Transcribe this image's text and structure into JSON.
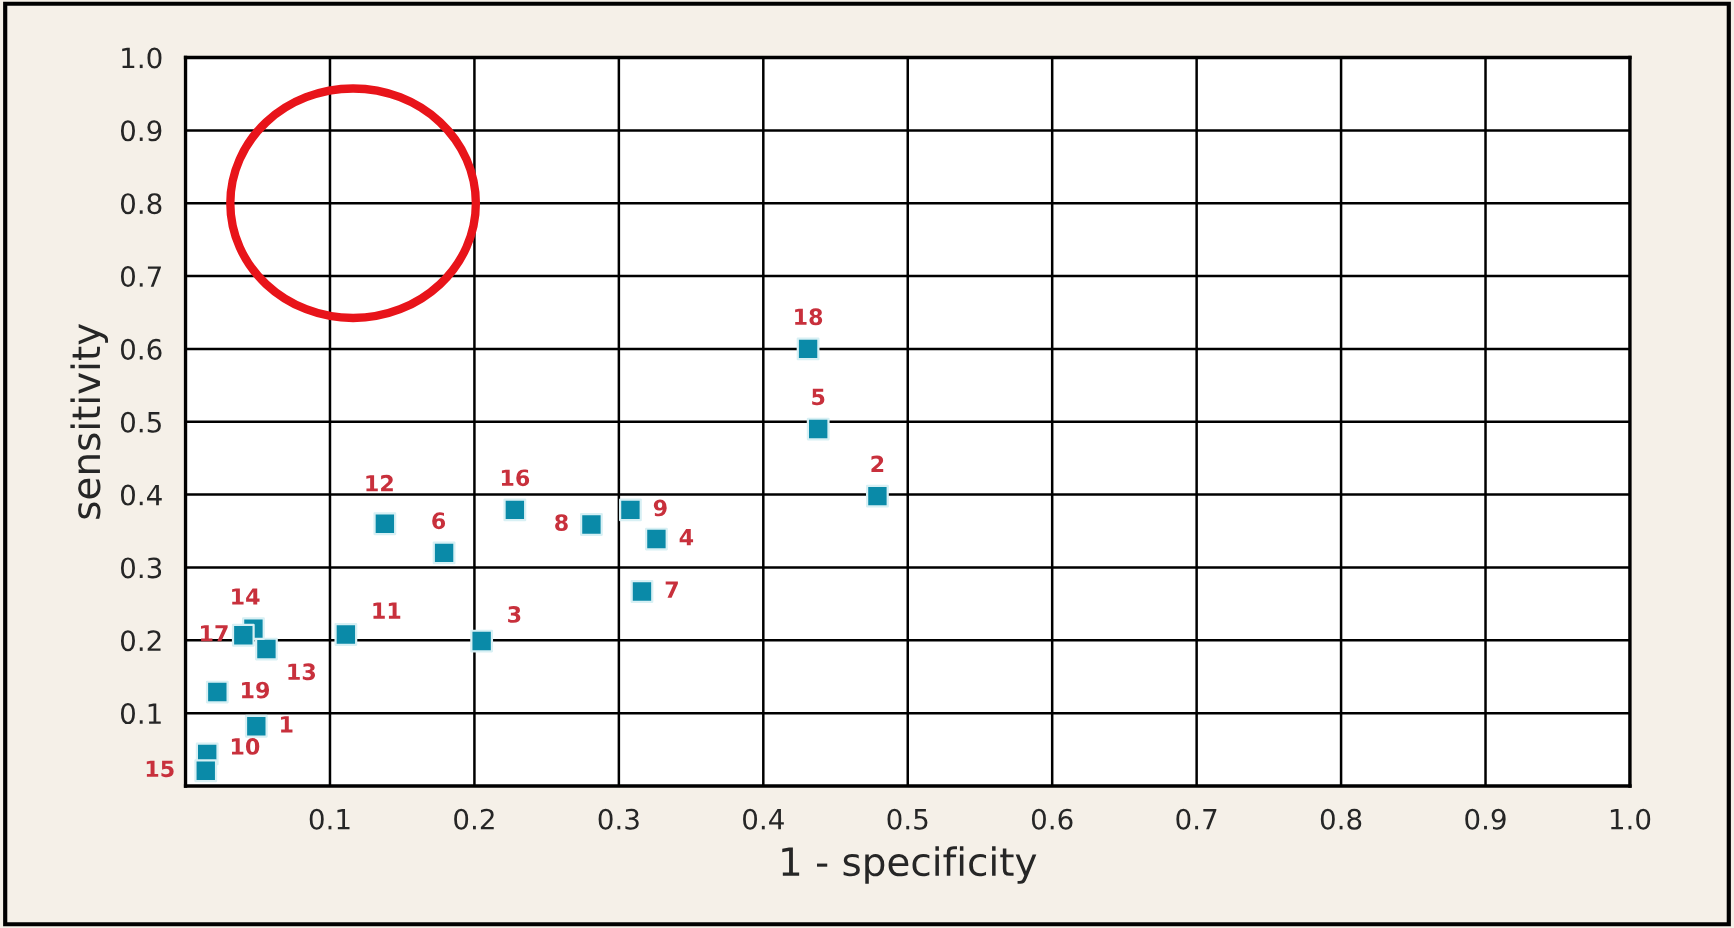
{
  "chart_data": {
    "type": "scatter",
    "xlabel": "1 - specificity",
    "ylabel": "sensitivity",
    "x": [
      0.049,
      0.479,
      0.205,
      0.326,
      0.438,
      0.179,
      0.316,
      0.281,
      0.308,
      0.015,
      0.111,
      0.138,
      0.056,
      0.047,
      0.014,
      0.228,
      0.04,
      0.431,
      0.022
    ],
    "series": [
      {
        "color": "#0a8aa8",
        "values": [
          0.082,
          0.398,
          0.199,
          0.339,
          0.49,
          0.32,
          0.267,
          0.359,
          0.379,
          0.044,
          0.208,
          0.36,
          0.188,
          0.216,
          0.021,
          0.379,
          0.207,
          0.6,
          0.129
        ]
      }
    ],
    "annotations": [
      {
        "text": "1",
        "x": 0.049,
        "y": 0.082
      },
      {
        "text": "2",
        "x": 0.479,
        "y": 0.398
      },
      {
        "text": "3",
        "x": 0.205,
        "y": 0.199
      },
      {
        "text": "4",
        "x": 0.326,
        "y": 0.339
      },
      {
        "text": "5",
        "x": 0.438,
        "y": 0.49
      },
      {
        "text": "6",
        "x": 0.179,
        "y": 0.32
      },
      {
        "text": "7",
        "x": 0.316,
        "y": 0.267
      },
      {
        "text": "8",
        "x": 0.281,
        "y": 0.359
      },
      {
        "text": "9",
        "x": 0.308,
        "y": 0.379
      },
      {
        "text": "10",
        "x": 0.015,
        "y": 0.044
      },
      {
        "text": "11",
        "x": 0.111,
        "y": 0.208
      },
      {
        "text": "12",
        "x": 0.138,
        "y": 0.36
      },
      {
        "text": "13",
        "x": 0.056,
        "y": 0.188
      },
      {
        "text": "14",
        "x": 0.047,
        "y": 0.216
      },
      {
        "text": "15",
        "x": 0.014,
        "y": 0.021
      },
      {
        "text": "16",
        "x": 0.228,
        "y": 0.379
      },
      {
        "text": "17",
        "x": 0.04,
        "y": 0.207
      },
      {
        "text": "18",
        "x": 0.431,
        "y": 0.6
      },
      {
        "text": "19",
        "x": 0.022,
        "y": 0.129
      }
    ],
    "xlim": [
      0,
      1
    ],
    "ylim": [
      0,
      1
    ],
    "xticks": [
      0.1,
      0.2,
      0.3,
      0.4,
      0.5,
      0.6,
      0.7,
      0.8,
      0.9,
      {
        "value": 1,
        "label": "1.0"
      }
    ],
    "yticks": [
      0.1,
      0.2,
      0.3,
      0.4,
      0.5,
      0.6,
      0.7,
      0.8,
      0.9,
      {
        "value": 1,
        "label": "1.0"
      }
    ],
    "grid": true,
    "marker": "square",
    "legend": false
  }
}
